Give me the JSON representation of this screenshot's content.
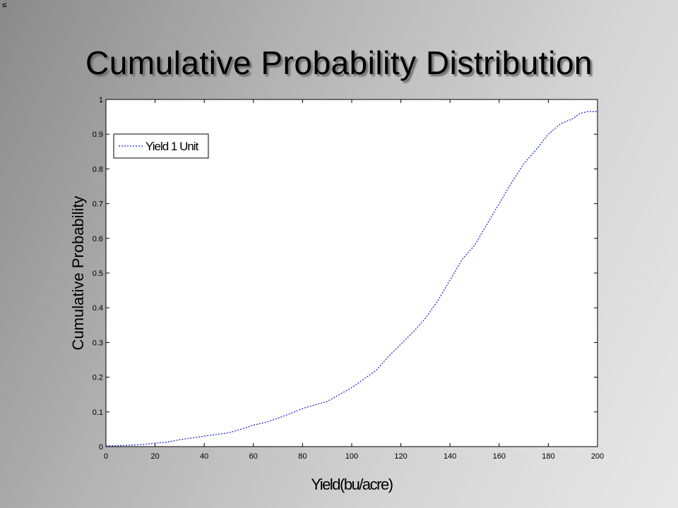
{
  "corner_mark": "≤",
  "slide_title": "Cumulative Probability Distribution",
  "colors": {
    "line": "#1f2bd6",
    "plot_bg": "#ffffff",
    "axis": "#000000"
  },
  "chart_data": {
    "type": "line",
    "title": "Cumulative Probability Distribution",
    "xlabel": "Yield(bu/acre)",
    "ylabel": "Cumulative Probability",
    "xlim": [
      0,
      200
    ],
    "ylim": [
      0,
      1
    ],
    "xticks": [
      0,
      20,
      40,
      60,
      80,
      100,
      120,
      140,
      160,
      180,
      200
    ],
    "yticks": [
      0,
      0.1,
      0.2,
      0.3,
      0.4,
      0.5,
      0.6,
      0.7,
      0.8,
      0.9,
      1
    ],
    "grid": false,
    "legend_position": "top-left",
    "line_style": "dotted",
    "series": [
      {
        "name": "Yield 1 Unit",
        "x": [
          0,
          5,
          10,
          15,
          20,
          25,
          30,
          35,
          40,
          45,
          50,
          55,
          60,
          65,
          70,
          75,
          80,
          85,
          90,
          95,
          100,
          105,
          110,
          115,
          120,
          125,
          130,
          135,
          140,
          145,
          150,
          155,
          160,
          165,
          170,
          175,
          180,
          185,
          190,
          193,
          196,
          200
        ],
        "y": [
          0.002,
          0.003,
          0.004,
          0.006,
          0.01,
          0.013,
          0.02,
          0.025,
          0.03,
          0.035,
          0.04,
          0.05,
          0.062,
          0.07,
          0.082,
          0.095,
          0.11,
          0.12,
          0.13,
          0.15,
          0.17,
          0.195,
          0.22,
          0.26,
          0.295,
          0.33,
          0.37,
          0.42,
          0.48,
          0.54,
          0.58,
          0.64,
          0.7,
          0.76,
          0.815,
          0.855,
          0.9,
          0.93,
          0.945,
          0.96,
          0.965,
          0.965
        ]
      }
    ]
  }
}
